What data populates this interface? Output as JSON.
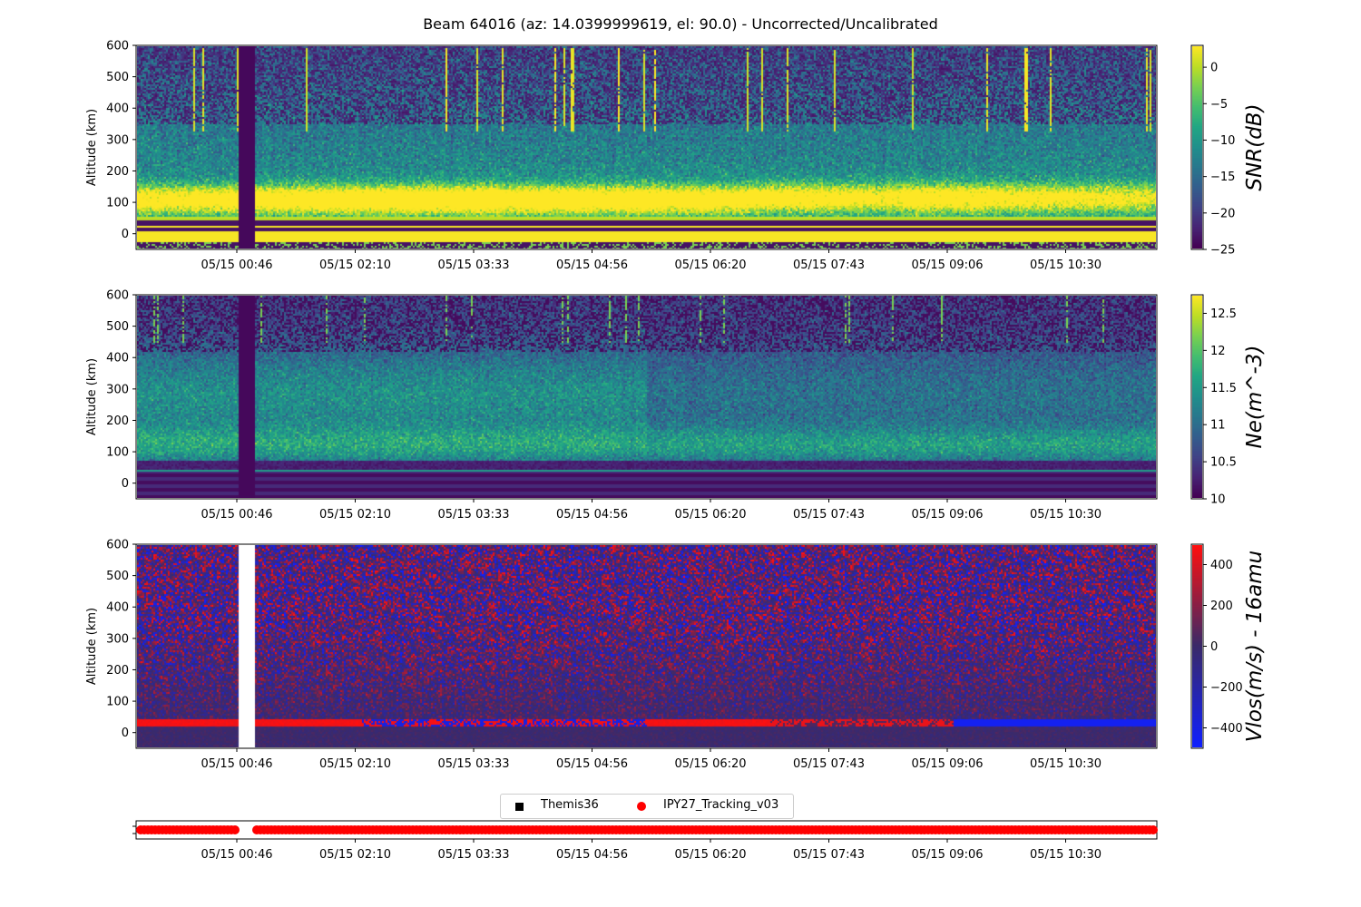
{
  "figure_title": "Beam 64016 (az: 14.0399999619, el: 90.0) - Uncorrected/Uncalibrated",
  "chart_data": [
    {
      "type": "heatmap",
      "title": "Beam 64016 (az: 14.0399999619, el: 90.0) - Uncorrected/Uncalibrated",
      "xlabel": "",
      "ylabel": "Altitude (km)",
      "ylim": [
        -50,
        600
      ],
      "yticks": [
        0,
        100,
        200,
        300,
        400,
        500,
        600
      ],
      "xticks": [
        "05/15 00:46",
        "05/15 02:10",
        "05/15 03:33",
        "05/15 04:56",
        "05/15 06:20",
        "05/15 07:43",
        "05/15 09:06",
        "05/15 10:30"
      ],
      "colorbar_label": "SNR(dB)",
      "colorbar_ticks": [
        0,
        -5,
        -10,
        -15,
        -20,
        -25
      ],
      "clim": [
        -25,
        3
      ],
      "colormap": "viridis",
      "data_gap": [
        "05/15 00:46",
        "05/15 01:00"
      ],
      "features": [
        "strong signal layer 70-150 km",
        "saturated band below 50 km",
        "intermittent vertical streaks 350-600 km"
      ]
    },
    {
      "type": "heatmap",
      "ylabel": "Altitude (km)",
      "ylim": [
        -50,
        600
      ],
      "yticks": [
        0,
        100,
        200,
        300,
        400,
        500,
        600
      ],
      "xticks": [
        "05/15 00:46",
        "05/15 02:10",
        "05/15 03:33",
        "05/15 04:56",
        "05/15 06:20",
        "05/15 07:43",
        "05/15 09:06",
        "05/15 10:30"
      ],
      "colorbar_label": "Ne(m^-3)",
      "colorbar_ticks": [
        12.5,
        12.0,
        11.5,
        11.0,
        10.5,
        10.0
      ],
      "clim": [
        10.0,
        12.75
      ],
      "colormap": "viridis",
      "data_gap": [
        "05/15 00:46",
        "05/15 01:00"
      ]
    },
    {
      "type": "heatmap",
      "ylabel": "Altitude (km)",
      "ylim": [
        -50,
        600
      ],
      "yticks": [
        0,
        100,
        200,
        300,
        400,
        500,
        600
      ],
      "xticks": [
        "05/15 00:46",
        "05/15 02:10",
        "05/15 03:33",
        "05/15 04:56",
        "05/15 06:20",
        "05/15 07:43",
        "05/15 09:06",
        "05/15 10:30"
      ],
      "colorbar_label": "Vlos(m/s) - 16amu",
      "colorbar_ticks": [
        400,
        200,
        0,
        -200,
        -400
      ],
      "clim": [
        -500,
        500
      ],
      "colormap": "bwr-dark",
      "data_gap": [
        "05/15 00:46",
        "05/15 01:00"
      ]
    },
    {
      "type": "scatter",
      "xticks": [
        "05/15 00:46",
        "05/15 02:10",
        "05/15 03:33",
        "05/15 04:56",
        "05/15 06:20",
        "05/15 07:43",
        "05/15 09:06",
        "05/15 10:30"
      ],
      "legend": [
        "Themis36",
        "IPY27_Tracking_v03"
      ],
      "legend_position": "top-center",
      "series": [
        {
          "name": "Themis36",
          "marker": "square",
          "color": "#000000",
          "segments": []
        },
        {
          "name": "IPY27_Tracking_v03",
          "marker": "circle",
          "color": "#ff0000",
          "segments": [
            [
              "start",
              "05/15 00:46"
            ],
            [
              "05/15 01:00",
              "end"
            ]
          ]
        }
      ]
    }
  ],
  "colors": {
    "axes": "#000000",
    "line_red": "#ff0000",
    "vlos_pos": "#ff0000",
    "vlos_neg": "#1020ff",
    "vlos_mid": "#3a2a6a"
  }
}
